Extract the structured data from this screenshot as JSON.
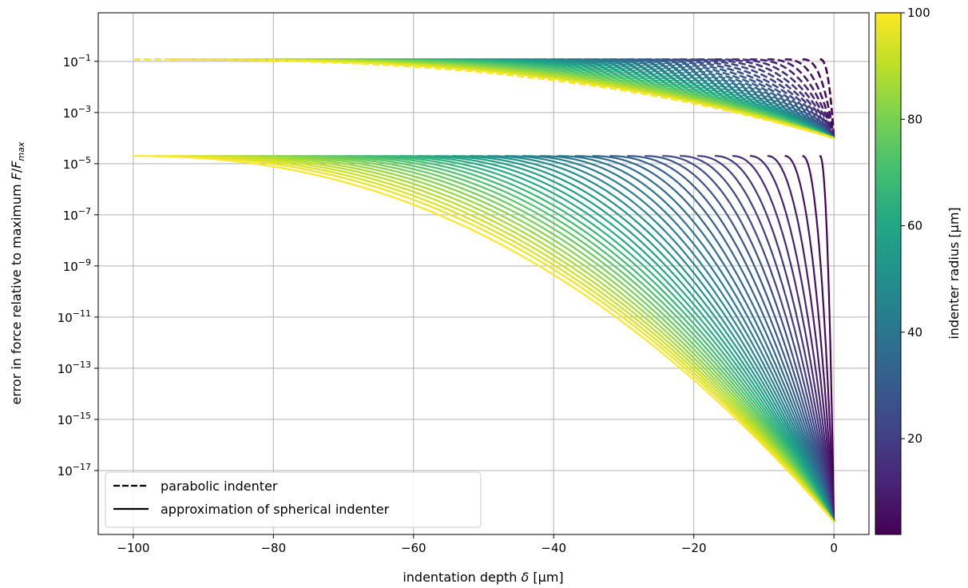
{
  "chart_data": {
    "type": "line",
    "xlabel_main": "indentation depth ",
    "xlabel_symbol": "δ",
    "xlabel_unit": " [µm]",
    "ylabel_main": "error in force relative to maximum ",
    "ylabel_F": "F",
    "ylabel_slash": "/",
    "ylabel_F2": "F",
    "ylabel_sub": "max",
    "colorbar_label": "indenter radius [µm]",
    "xlim": [
      -105,
      5
    ],
    "ylim_log10": [
      -19.5,
      0.9
    ],
    "y_scale": "log",
    "grid": true,
    "x_ticks": [
      -100,
      -80,
      -60,
      -40,
      -20,
      0
    ],
    "x_tick_labels": [
      "−100",
      "−80",
      "−60",
      "−40",
      "−20",
      "0"
    ],
    "y_ticks": [
      {
        "base": "10",
        "exp": "−1",
        "log10": -1
      },
      {
        "base": "10",
        "exp": "−3",
        "log10": -3
      },
      {
        "base": "10",
        "exp": "−5",
        "log10": -5
      },
      {
        "base": "10",
        "exp": "−7",
        "log10": -7
      },
      {
        "base": "10",
        "exp": "−9",
        "log10": -9
      },
      {
        "base": "10",
        "exp": "−11",
        "log10": -11
      },
      {
        "base": "10",
        "exp": "−13",
        "log10": -13
      },
      {
        "base": "10",
        "exp": "−15",
        "log10": -15
      },
      {
        "base": "10",
        "exp": "−17",
        "log10": -17
      }
    ],
    "colorbar": {
      "min": 2,
      "max": 100,
      "ticks": [
        20,
        40,
        60,
        80,
        100
      ],
      "tick_labels": [
        "20",
        "40",
        "60",
        "80",
        "100"
      ],
      "colormap": "viridis"
    },
    "legend": {
      "position": "lower-left",
      "items": [
        {
          "label": "parabolic indenter",
          "style": "dashed"
        },
        {
          "label": "approximation of spherical indenter",
          "style": "solid"
        }
      ]
    },
    "radii": [
      2,
      4.5,
      7,
      9.5,
      12,
      14.5,
      17,
      19.5,
      22,
      24.5,
      27,
      29.5,
      32,
      34.5,
      37,
      39.5,
      42,
      44.5,
      47,
      49.5,
      52,
      54.5,
      57,
      59.5,
      62,
      64.5,
      67,
      69.5,
      72,
      74.5,
      77,
      79.5,
      82,
      84.5,
      87,
      89.5,
      92,
      94.5,
      97,
      100
    ],
    "series": [
      {
        "name": "parabolic indenter",
        "style": "dashed",
        "depth_range": "-R to 0",
        "error_at_max_depth": 0.12,
        "error_near_zero": 0.0001
      },
      {
        "name": "approximation of spherical indenter",
        "style": "solid",
        "depth_range": "-R to 0",
        "error_at_max_depth": 2e-05,
        "error_near_zero": 1e-19
      }
    ],
    "colors": {
      "grid": "#b0b0b0",
      "axes": "#000000",
      "legend_border": "#cccccc"
    }
  }
}
